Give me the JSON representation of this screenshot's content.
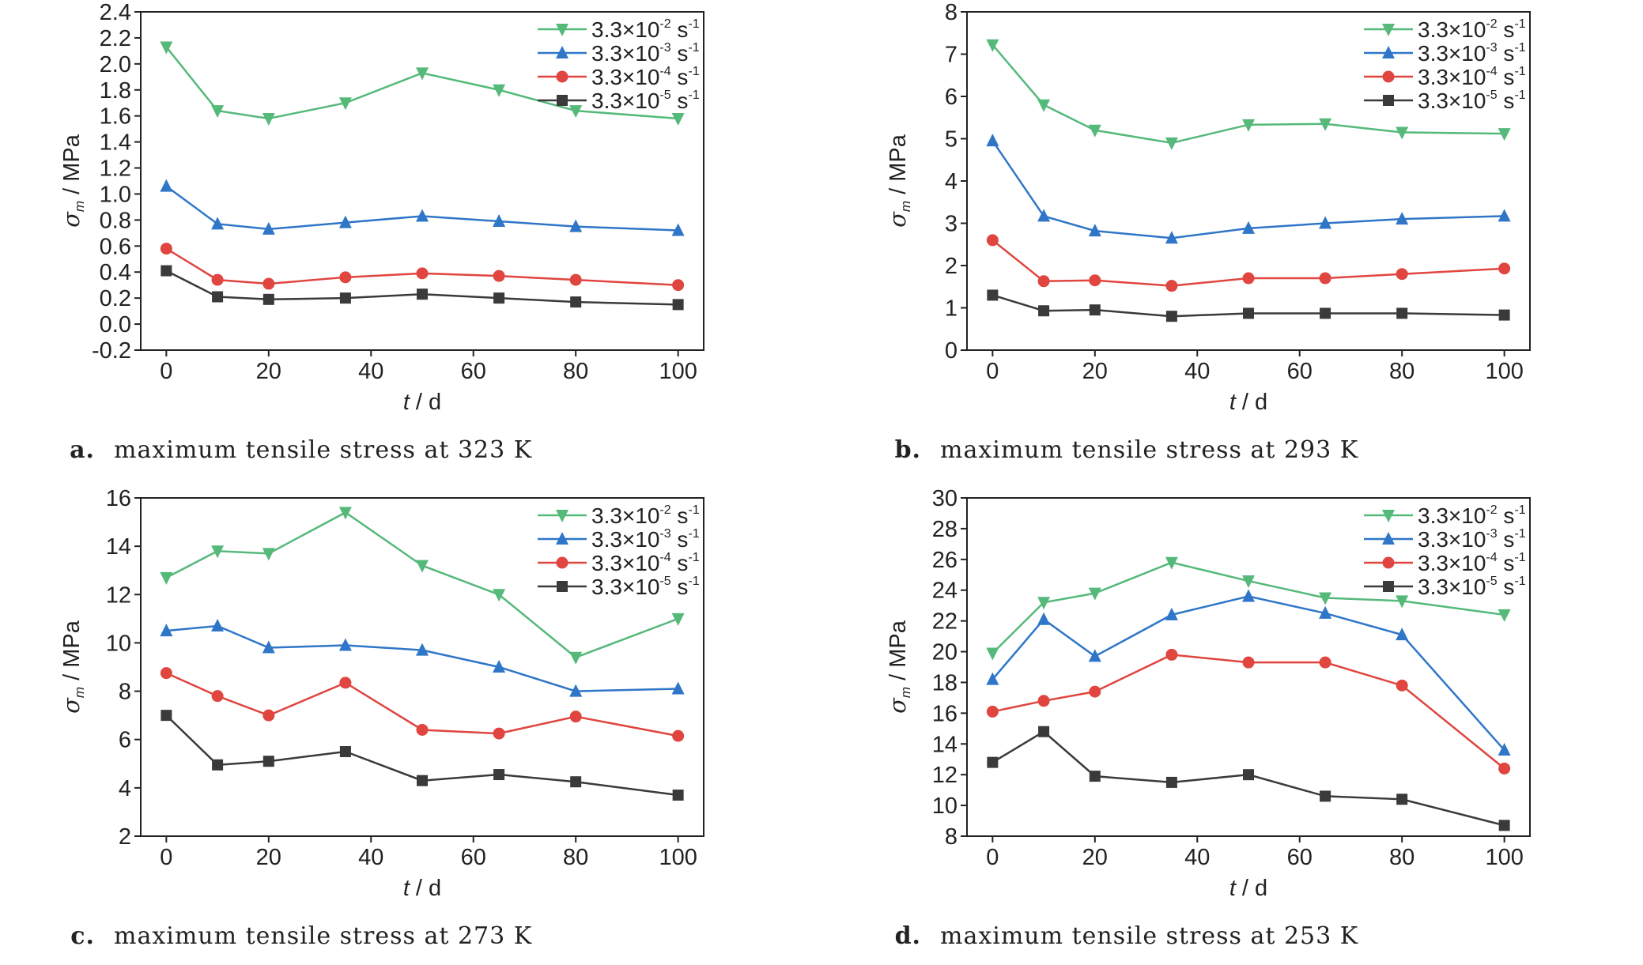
{
  "chart_data": [
    {
      "type": "line",
      "letter": "a.",
      "caption": "maximum tensile stress at 323 K",
      "xlabel_main": "t",
      "xlabel_unit": "/ d",
      "ylabel_main": "σ",
      "ylabel_sub": "m",
      "ylabel_unit": "/ MPa",
      "x": [
        0,
        10,
        20,
        35,
        50,
        65,
        80,
        100
      ],
      "xlim": [
        -5,
        105
      ],
      "xticks": [
        0,
        20,
        40,
        60,
        80,
        100
      ],
      "ylim": [
        -0.2,
        2.4
      ],
      "yticks": [
        -0.2,
        0.0,
        0.2,
        0.4,
        0.6,
        0.8,
        1.0,
        1.2,
        1.4,
        1.6,
        1.8,
        2.0,
        2.2,
        2.4
      ],
      "ytick_labels": [
        "-0.2",
        "0.0",
        "0.2",
        "0.4",
        "0.6",
        "0.8",
        "1.0",
        "1.2",
        "1.4",
        "1.6",
        "1.8",
        "2.0",
        "2.2",
        "2.4"
      ],
      "legend_position": "top-right",
      "series": [
        {
          "name": "3.3×10⁻² s⁻¹",
          "base": "3.3×10",
          "exp": "-2",
          "unit": " s",
          "unit_exp": "-1",
          "marker": "triangle-down",
          "color": "#55b97a",
          "values": [
            2.13,
            1.64,
            1.58,
            1.7,
            1.93,
            1.8,
            1.64,
            1.58
          ]
        },
        {
          "name": "3.3×10⁻³ s⁻¹",
          "base": "3.3×10",
          "exp": "-3",
          "unit": " s",
          "unit_exp": "-1",
          "marker": "triangle-up",
          "color": "#2f76c8",
          "values": [
            1.06,
            0.77,
            0.73,
            0.78,
            0.83,
            0.79,
            0.75,
            0.72
          ]
        },
        {
          "name": "3.3×10⁻⁴ s⁻¹",
          "base": "3.3×10",
          "exp": "-4",
          "unit": " s",
          "unit_exp": "-1",
          "marker": "circle",
          "color": "#e0453f",
          "values": [
            0.58,
            0.34,
            0.31,
            0.36,
            0.39,
            0.37,
            0.34,
            0.3
          ]
        },
        {
          "name": "3.3×10⁻⁵ s⁻¹",
          "base": "3.3×10",
          "exp": "-5",
          "unit": " s",
          "unit_exp": "-1",
          "marker": "square",
          "color": "#3a3a3a",
          "values": [
            0.41,
            0.21,
            0.19,
            0.2,
            0.23,
            0.2,
            0.17,
            0.15
          ]
        }
      ]
    },
    {
      "type": "line",
      "letter": "b.",
      "caption": "maximum tensile stress at 293 K",
      "xlabel_main": "t",
      "xlabel_unit": "/ d",
      "ylabel_main": "σ",
      "ylabel_sub": "m",
      "ylabel_unit": "/ MPa",
      "x": [
        0,
        10,
        20,
        35,
        50,
        65,
        80,
        100
      ],
      "xlim": [
        -5,
        105
      ],
      "xticks": [
        0,
        20,
        40,
        60,
        80,
        100
      ],
      "ylim": [
        0,
        8
      ],
      "yticks": [
        0,
        1,
        2,
        3,
        4,
        5,
        6,
        7,
        8
      ],
      "ytick_labels": [
        "0",
        "1",
        "2",
        "3",
        "4",
        "5",
        "6",
        "7",
        "8"
      ],
      "legend_position": "top-right",
      "series": [
        {
          "name": "3.3×10⁻² s⁻¹",
          "base": "3.3×10",
          "exp": "-2",
          "unit": " s",
          "unit_exp": "-1",
          "marker": "triangle-down",
          "color": "#55b97a",
          "values": [
            7.22,
            5.8,
            5.2,
            4.9,
            5.33,
            5.35,
            5.15,
            5.12
          ]
        },
        {
          "name": "3.3×10⁻³ s⁻¹",
          "base": "3.3×10",
          "exp": "-3",
          "unit": " s",
          "unit_exp": "-1",
          "marker": "triangle-up",
          "color": "#2f76c8",
          "values": [
            4.95,
            3.17,
            2.82,
            2.65,
            2.88,
            3.0,
            3.1,
            3.17
          ]
        },
        {
          "name": "3.3×10⁻⁴ s⁻¹",
          "base": "3.3×10",
          "exp": "-4",
          "unit": " s",
          "unit_exp": "-1",
          "marker": "circle",
          "color": "#e0453f",
          "values": [
            2.6,
            1.63,
            1.65,
            1.52,
            1.7,
            1.7,
            1.8,
            1.93
          ]
        },
        {
          "name": "3.3×10⁻⁵ s⁻¹",
          "base": "3.3×10",
          "exp": "-5",
          "unit": " s",
          "unit_exp": "-1",
          "marker": "square",
          "color": "#3a3a3a",
          "values": [
            1.3,
            0.93,
            0.95,
            0.8,
            0.87,
            0.87,
            0.87,
            0.83
          ]
        }
      ]
    },
    {
      "type": "line",
      "letter": "c.",
      "caption": "maximum tensile stress at 273 K",
      "xlabel_main": "t",
      "xlabel_unit": "/ d",
      "ylabel_main": "σ",
      "ylabel_sub": "m",
      "ylabel_unit": "/ MPa",
      "x": [
        0,
        10,
        20,
        35,
        50,
        65,
        80,
        100
      ],
      "xlim": [
        -5,
        105
      ],
      "xticks": [
        0,
        20,
        40,
        60,
        80,
        100
      ],
      "ylim": [
        2,
        16
      ],
      "yticks": [
        2,
        4,
        6,
        8,
        10,
        12,
        14,
        16
      ],
      "ytick_labels": [
        "2",
        "4",
        "6",
        "8",
        "10",
        "12",
        "14",
        "16"
      ],
      "legend_position": "top-right",
      "series": [
        {
          "name": "3.3×10⁻² s⁻¹",
          "base": "3.3×10",
          "exp": "-2",
          "unit": " s",
          "unit_exp": "-1",
          "marker": "triangle-down",
          "color": "#55b97a",
          "values": [
            12.7,
            13.8,
            13.7,
            15.4,
            13.2,
            12.0,
            9.4,
            11.0
          ]
        },
        {
          "name": "3.3×10⁻³ s⁻¹",
          "base": "3.3×10",
          "exp": "-3",
          "unit": " s",
          "unit_exp": "-1",
          "marker": "triangle-up",
          "color": "#2f76c8",
          "values": [
            10.5,
            10.7,
            9.8,
            9.9,
            9.7,
            9.0,
            8.0,
            8.1
          ]
        },
        {
          "name": "3.3×10⁻⁴ s⁻¹",
          "base": "3.3×10",
          "exp": "-4",
          "unit": " s",
          "unit_exp": "-1",
          "marker": "circle",
          "color": "#e0453f",
          "values": [
            8.75,
            7.8,
            7.0,
            8.35,
            6.4,
            6.25,
            6.95,
            6.15
          ]
        },
        {
          "name": "3.3×10⁻⁵ s⁻¹",
          "base": "3.3×10",
          "exp": "-5",
          "unit": " s",
          "unit_exp": "-1",
          "marker": "square",
          "color": "#3a3a3a",
          "values": [
            7.0,
            4.95,
            5.1,
            5.5,
            4.3,
            4.55,
            4.25,
            3.7
          ]
        }
      ]
    },
    {
      "type": "line",
      "letter": "d.",
      "caption": "maximum tensile stress at 253 K",
      "xlabel_main": "t",
      "xlabel_unit": "/ d",
      "ylabel_main": "σ",
      "ylabel_sub": "m",
      "ylabel_unit": "/ MPa",
      "x": [
        0,
        10,
        20,
        35,
        50,
        65,
        80,
        100
      ],
      "xlim": [
        -5,
        105
      ],
      "xticks": [
        0,
        20,
        40,
        60,
        80,
        100
      ],
      "ylim": [
        8,
        30
      ],
      "yticks": [
        8,
        10,
        12,
        14,
        16,
        18,
        20,
        22,
        24,
        26,
        28,
        30
      ],
      "ytick_labels": [
        "8",
        "10",
        "12",
        "14",
        "16",
        "18",
        "20",
        "22",
        "24",
        "26",
        "28",
        "30"
      ],
      "legend_position": "top-right",
      "series": [
        {
          "name": "3.3×10⁻² s⁻¹",
          "base": "3.3×10",
          "exp": "-2",
          "unit": " s",
          "unit_exp": "-1",
          "marker": "triangle-down",
          "color": "#55b97a",
          "values": [
            19.9,
            23.2,
            23.8,
            25.8,
            24.6,
            23.5,
            23.3,
            22.4
          ]
        },
        {
          "name": "3.3×10⁻³ s⁻¹",
          "base": "3.3×10",
          "exp": "-3",
          "unit": " s",
          "unit_exp": "-1",
          "marker": "triangle-up",
          "color": "#2f76c8",
          "values": [
            18.2,
            22.1,
            19.7,
            22.4,
            23.6,
            22.5,
            21.1,
            13.6
          ]
        },
        {
          "name": "3.3×10⁻⁴ s⁻¹",
          "base": "3.3×10",
          "exp": "-4",
          "unit": " s",
          "unit_exp": "-1",
          "marker": "circle",
          "color": "#e0453f",
          "values": [
            16.1,
            16.8,
            17.4,
            19.8,
            19.3,
            19.3,
            17.8,
            12.4
          ]
        },
        {
          "name": "3.3×10⁻⁵ s⁻¹",
          "base": "3.3×10",
          "exp": "-5",
          "unit": " s",
          "unit_exp": "-1",
          "marker": "square",
          "color": "#3a3a3a",
          "values": [
            12.8,
            14.8,
            11.9,
            11.5,
            12.0,
            10.6,
            10.4,
            8.7
          ]
        }
      ]
    }
  ]
}
